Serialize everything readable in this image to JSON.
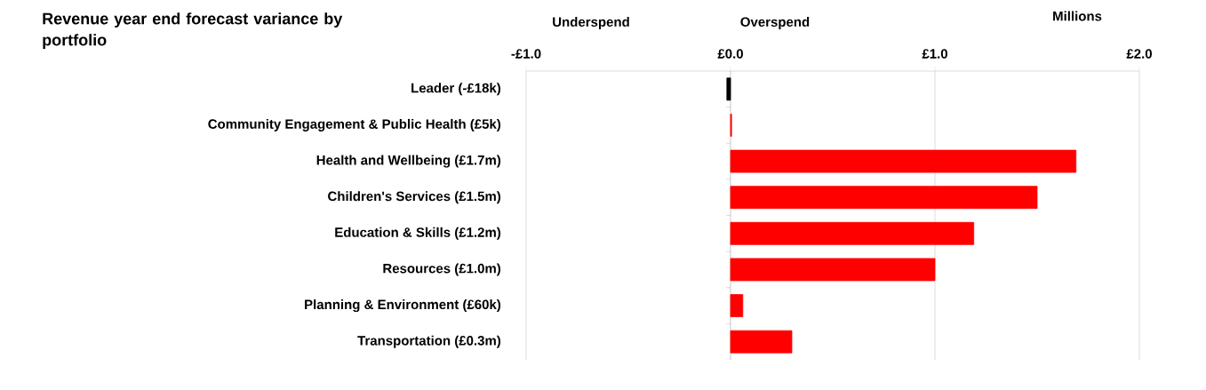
{
  "chart_data": {
    "type": "bar",
    "orientation": "horizontal",
    "title": "Revenue year end forecast variance by portfolio",
    "xlabel": "Millions",
    "annotations": [
      "Underspend",
      "Overspend"
    ],
    "categories": [
      "Leader (-£18k)",
      "Community Engagement & Public Health  (£5k)",
      "Health and Wellbeing (£1.7m)",
      "Children's Services (£1.5m)",
      "Education & Skills (£1.2m)",
      "Resources (£1.0m)",
      "Planning & Environment (£60k)",
      "Transportation (£0.3m)"
    ],
    "values": [
      -0.018,
      0.005,
      1.69,
      1.5,
      1.19,
      1.0,
      0.06,
      0.3
    ],
    "colors": [
      "#000000",
      "#ff0000",
      "#ff0000",
      "#ff0000",
      "#ff0000",
      "#ff0000",
      "#ff0000",
      "#ff0000"
    ],
    "xlim": [
      -1,
      2
    ],
    "xticks": [
      {
        "value": -1,
        "label": "-£1.0"
      },
      {
        "value": 0,
        "label": "£0.0"
      },
      {
        "value": 1,
        "label": "£1.0"
      },
      {
        "value": 2,
        "label": "£2.0"
      }
    ],
    "grid": "x"
  }
}
